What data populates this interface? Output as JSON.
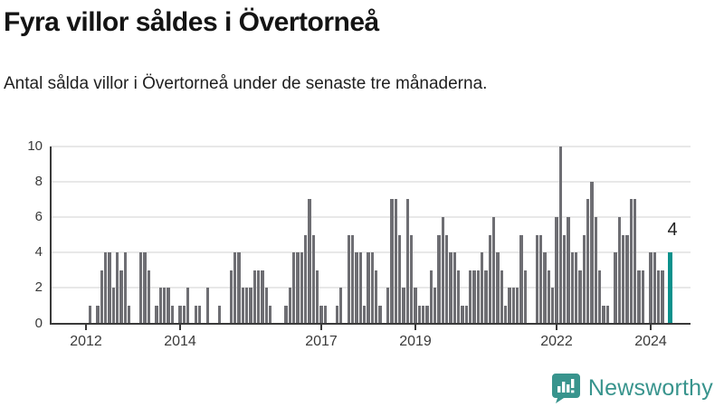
{
  "header": {
    "title": "Fyra villor såldes i Övertorneå",
    "subtitle": "Antal sålda villor i Övertorneå under de senaste tre månaderna."
  },
  "annotation": {
    "last_value_label": "4"
  },
  "branding": {
    "name": "Newsworthy",
    "icon": "newsworthy-speech-bubble-bar-chart-icon",
    "text_color": "#38948d",
    "icon_color": "#38948d"
  },
  "colors": {
    "bar": "#6e6e73",
    "highlight": "#0b918c",
    "gridline": "#e8e8e8",
    "axis": "#3a3a3a",
    "title_text": "#141414"
  },
  "chart_data": {
    "type": "bar",
    "title": "Fyra villor såldes i Övertorneå",
    "subtitle": "Antal sålda villor i Övertorneå under de senaste tre månaderna.",
    "ylabel": "",
    "xlabel": "",
    "ylim": [
      0,
      10
    ],
    "y_ticks": [
      0,
      2,
      4,
      6,
      8,
      10
    ],
    "grid": "horizontal",
    "frequency": "monthly",
    "start_month": "2012-01",
    "x_ticks": [
      {
        "label": "2012",
        "month_index": 0
      },
      {
        "label": "2014",
        "month_index": 24
      },
      {
        "label": "2017",
        "month_index": 60
      },
      {
        "label": "2019",
        "month_index": 84
      },
      {
        "label": "2022",
        "month_index": 120
      },
      {
        "label": "2024",
        "month_index": 144
      }
    ],
    "values": [
      0,
      1,
      0,
      1,
      3,
      4,
      4,
      2,
      4,
      3,
      4,
      1,
      0,
      0,
      4,
      4,
      3,
      0,
      1,
      2,
      2,
      2,
      1,
      0,
      1,
      1,
      2,
      0,
      1,
      1,
      0,
      2,
      0,
      0,
      1,
      0,
      0,
      3,
      4,
      4,
      2,
      2,
      2,
      3,
      3,
      3,
      2,
      1,
      0,
      0,
      0,
      1,
      2,
      4,
      4,
      4,
      5,
      7,
      5,
      3,
      1,
      1,
      0,
      0,
      1,
      2,
      0,
      5,
      5,
      4,
      4,
      1,
      4,
      4,
      3,
      1,
      0,
      2,
      7,
      7,
      5,
      2,
      7,
      5,
      2,
      1,
      1,
      1,
      3,
      2,
      5,
      6,
      5,
      4,
      4,
      3,
      1,
      1,
      3,
      3,
      3,
      4,
      3,
      5,
      6,
      4,
      3,
      1,
      2,
      2,
      2,
      5,
      3,
      0,
      0,
      5,
      5,
      4,
      3,
      2,
      6,
      10,
      5,
      6,
      4,
      4,
      3,
      5,
      7,
      8,
      6,
      3,
      1,
      1,
      0,
      4,
      6,
      5,
      5,
      7,
      7,
      3,
      3,
      0,
      4,
      4,
      3,
      3,
      0,
      4
    ],
    "highlight_last_bar": true,
    "highlight_last_value": 4
  }
}
